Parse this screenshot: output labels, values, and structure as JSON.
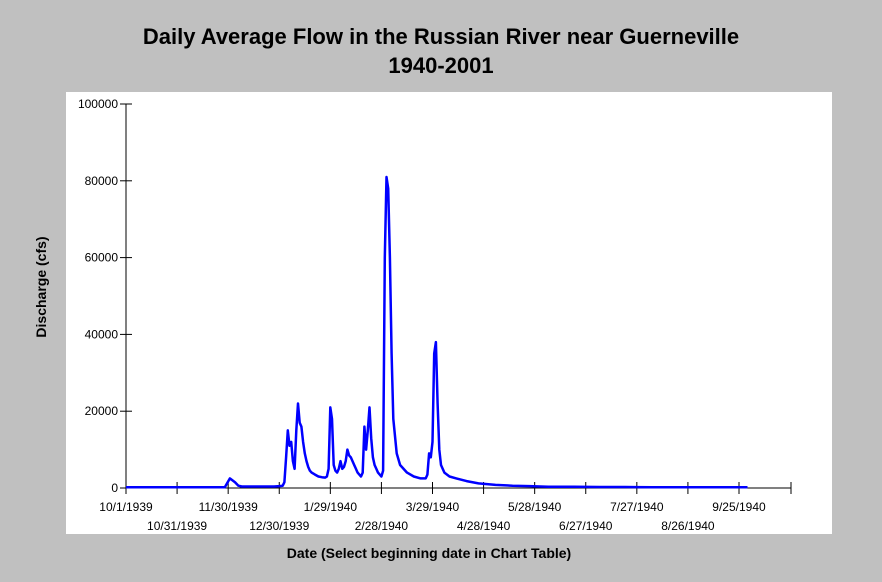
{
  "chart_data": {
    "type": "line",
    "title": "Daily Average Flow in the Russian River near Guerneville",
    "subtitle": "1940-2001",
    "xlabel": "Date (Select beginning date in Chart Table)",
    "ylabel": "Discharge (cfs)",
    "ylim": [
      0,
      100000
    ],
    "y_ticks": [
      "0",
      "20000",
      "40000",
      "60000",
      "80000",
      "100000"
    ],
    "x_ticks_upper": [
      "10/1/1939",
      "11/30/1939",
      "1/29/1940",
      "3/29/1940",
      "5/28/1940",
      "7/27/1940",
      "9/25/1940"
    ],
    "x_ticks_lower": [
      "10/31/1939",
      "12/30/1939",
      "2/28/1940",
      "4/28/1940",
      "6/27/1940",
      "8/26/1940"
    ],
    "grid": false,
    "series_color": "#0000ff",
    "series": [
      {
        "x": [
          "10/1/1939",
          "10/10/1939",
          "10/20/1939",
          "11/1/1939",
          "11/10/1939",
          "11/20/1939",
          "11/28/1939",
          "12/1/1939",
          "12/4/1939",
          "12/6/1939",
          "12/8/1939",
          "12/12/1939",
          "12/18/1939",
          "12/24/1939",
          "12/27/1939",
          "12/30/1939",
          "1/1/1940",
          "1/2/1940",
          "1/3/1940",
          "1/4/1940",
          "1/5/1940",
          "1/6/1940",
          "1/7/1940",
          "1/8/1940",
          "1/9/1940",
          "1/10/1940",
          "1/11/1940",
          "1/12/1940",
          "1/13/1940",
          "1/14/1940",
          "1/15/1940",
          "1/16/1940",
          "1/17/1940",
          "1/18/1940",
          "1/20/1940",
          "1/22/1940",
          "1/24/1940",
          "1/26/1940",
          "1/27/1940",
          "1/28/1940",
          "1/29/1940",
          "1/30/1940",
          "1/31/1940",
          "2/1/1940",
          "2/2/1940",
          "2/3/1940",
          "2/4/1940",
          "2/5/1940",
          "2/6/1940",
          "2/7/1940",
          "2/8/1940",
          "2/9/1940",
          "2/10/1940",
          "2/11/1940",
          "2/12/1940",
          "2/13/1940",
          "2/14/1940",
          "2/15/1940",
          "2/16/1940",
          "2/17/1940",
          "2/18/1940",
          "2/19/1940",
          "2/20/1940",
          "2/21/1940",
          "2/22/1940",
          "2/23/1940",
          "2/24/1940",
          "2/25/1940",
          "2/26/1940",
          "2/27/1940",
          "2/28/1940",
          "2/29/1940",
          "3/1/1940",
          "3/2/1940",
          "3/3/1940",
          "3/4/1940",
          "3/5/1940",
          "3/6/1940",
          "3/8/1940",
          "3/10/1940",
          "3/14/1940",
          "3/18/1940",
          "3/22/1940",
          "3/25/1940",
          "3/26/1940",
          "3/27/1940",
          "3/28/1940",
          "3/29/1940",
          "3/30/1940",
          "3/31/1940",
          "4/1/1940",
          "4/2/1940",
          "4/3/1940",
          "4/5/1940",
          "4/8/1940",
          "4/12/1940",
          "4/18/1940",
          "4/25/1940",
          "5/5/1940",
          "5/15/1940",
          "5/25/1940",
          "6/5/1940",
          "6/20/1940",
          "7/5/1940",
          "7/20/1940",
          "8/5/1940",
          "8/20/1940",
          "9/5/1940",
          "9/20/1940",
          "9/30/1940"
        ],
        "y": [
          200,
          200,
          200,
          200,
          200,
          200,
          200,
          2500,
          1500,
          600,
          400,
          400,
          400,
          400,
          400,
          500,
          600,
          1500,
          8000,
          15000,
          11000,
          12000,
          7000,
          5000,
          15000,
          22000,
          17000,
          16000,
          12000,
          9000,
          7000,
          5500,
          4500,
          4000,
          3500,
          3000,
          2800,
          2700,
          3000,
          5000,
          21000,
          18000,
          6000,
          4500,
          4000,
          5000,
          7000,
          5000,
          5500,
          7000,
          10000,
          8500,
          8000,
          7000,
          6000,
          5000,
          4000,
          3500,
          3000,
          4000,
          16000,
          10000,
          15000,
          21000,
          13000,
          8000,
          6000,
          5000,
          4000,
          3500,
          3000,
          4500,
          60000,
          81000,
          78000,
          60000,
          35000,
          18000,
          9000,
          6000,
          4000,
          3000,
          2500,
          2500,
          3500,
          9000,
          8000,
          12000,
          35000,
          38000,
          22000,
          10000,
          6000,
          4000,
          3000,
          2500,
          1800,
          1200,
          800,
          600,
          500,
          350,
          300,
          250,
          250,
          200,
          200,
          200,
          200,
          200
        ]
      }
    ]
  }
}
